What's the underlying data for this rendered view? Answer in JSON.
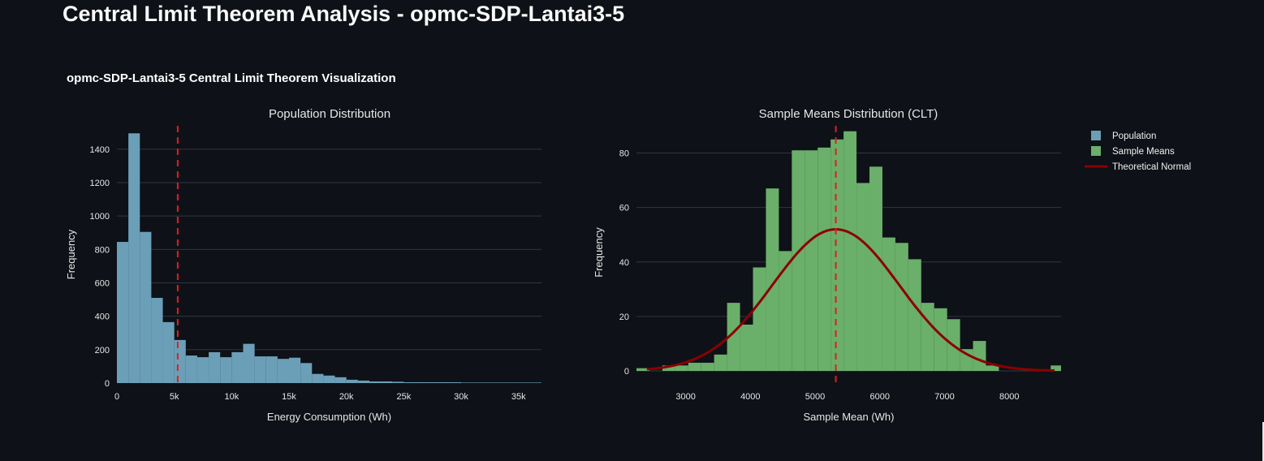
{
  "page": {
    "title": "Central Limit Theorem Analysis - opmc-SDP-Lantai3-5",
    "figure_title": "opmc-SDP-Lantai3-5 Central Limit Theorem Visualization"
  },
  "colors": {
    "background": "#0e1117",
    "grid": "#31363f",
    "population": "#6b9fb8",
    "sample_means": "#6aaf6a",
    "theoretical": "#8b0000",
    "mean_line": "#e11d1d"
  },
  "chart_data": [
    {
      "type": "bar",
      "title": "Population Distribution",
      "xlabel": "Energy Consumption (Wh)",
      "ylabel": "Frequency",
      "series_name": "Population",
      "xlim": [
        0,
        37000
      ],
      "ylim": [
        0,
        1540
      ],
      "bin_width": 1000,
      "bin_start": 0,
      "xticks": [
        0,
        5000,
        10000,
        15000,
        20000,
        25000,
        30000,
        35000
      ],
      "xtick_labels": [
        "0",
        "5k",
        "10k",
        "15k",
        "20k",
        "25k",
        "30k",
        "35k"
      ],
      "yticks": [
        0,
        200,
        400,
        600,
        800,
        1000,
        1200,
        1400
      ],
      "ytick_labels": [
        "0",
        "200",
        "400",
        "600",
        "800",
        "1000",
        "1200",
        "1400"
      ],
      "values": [
        845,
        1495,
        905,
        510,
        365,
        258,
        165,
        155,
        185,
        155,
        185,
        235,
        160,
        160,
        145,
        152,
        120,
        55,
        45,
        35,
        20,
        15,
        10,
        10,
        8,
        5,
        5,
        5,
        5,
        5,
        3,
        3,
        3,
        3,
        3,
        3,
        3
      ],
      "mean_line_x": 5300,
      "grid": true
    },
    {
      "type": "bar",
      "title": "Sample Means Distribution (CLT)",
      "xlabel": "Sample Mean (Wh)",
      "ylabel": "Frequency",
      "series_name": "Sample Means",
      "xlim": [
        2240,
        8800
      ],
      "ylim": [
        0,
        90
      ],
      "bin_width": 200,
      "bin_start": 2240,
      "xticks": [
        3000,
        4000,
        5000,
        6000,
        7000,
        8000
      ],
      "xtick_labels": [
        "3000",
        "4000",
        "5000",
        "6000",
        "7000",
        "8000"
      ],
      "yticks": [
        0,
        20,
        40,
        60,
        80
      ],
      "ytick_labels": [
        "0",
        "20",
        "40",
        "60",
        "80"
      ],
      "values": [
        1,
        0,
        2,
        2,
        3,
        3,
        6,
        25,
        17,
        38,
        67,
        44,
        81,
        81,
        82,
        85,
        88,
        69,
        75,
        49,
        47,
        41,
        25,
        23,
        19,
        8,
        11,
        2,
        0,
        0,
        0,
        0,
        2,
        1
      ],
      "mean_line_x": 5320,
      "theoretical_normal": {
        "name": "Theoretical Normal",
        "mu": 5320,
        "sigma": 980,
        "peak": 52,
        "x_range": [
          2400,
          8700
        ]
      },
      "grid": true
    }
  ],
  "legend": {
    "placement": "top-right",
    "items": [
      {
        "label": "Population",
        "kind": "bar",
        "color": "#6b9fb8"
      },
      {
        "label": "Sample Means",
        "kind": "bar",
        "color": "#6aaf6a"
      },
      {
        "label": "Theoretical Normal",
        "kind": "line",
        "color": "#8b0000"
      }
    ]
  }
}
